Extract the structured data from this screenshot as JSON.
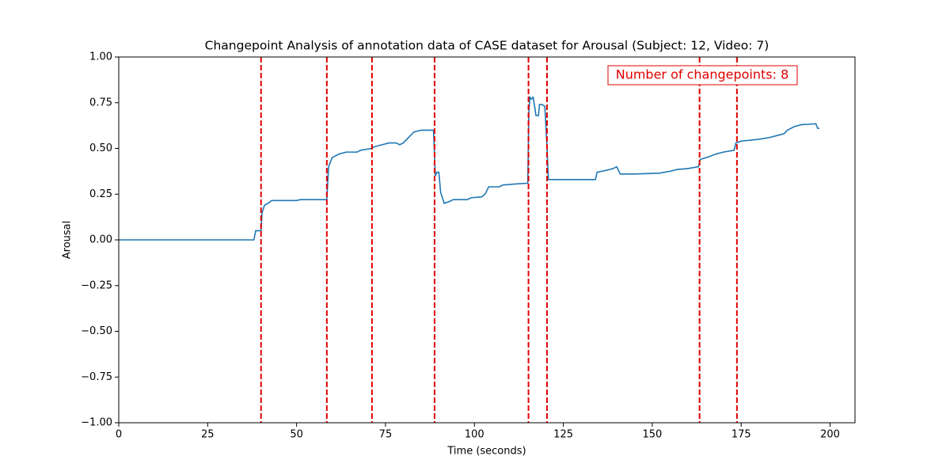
{
  "chart_data": {
    "type": "line",
    "title": "Changepoint Analysis of annotation data of CASE dataset for Arousal (Subject: 12, Video: 7)",
    "x_label": "Time (seconds)",
    "y_label": "Arousal",
    "annotation": "Number of changepoints: 8",
    "x": [
      0,
      38,
      38.5,
      40,
      40.3,
      41,
      42,
      43,
      50,
      51,
      58.5,
      59,
      60,
      61,
      62,
      64,
      67,
      68,
      71,
      72,
      74,
      76,
      78,
      79,
      80,
      81,
      83,
      85,
      88.5,
      89,
      89.5,
      90,
      90.5,
      91.5,
      93,
      94,
      98,
      99,
      102,
      103,
      104,
      107,
      108,
      111,
      115,
      115.3,
      115.6,
      116,
      116.5,
      117,
      117.3,
      118,
      118.3,
      119,
      119.8,
      120.3,
      120.8,
      134,
      134.5,
      137,
      139,
      140,
      141,
      145,
      152,
      155,
      157,
      160,
      163,
      163.5,
      166,
      168,
      170,
      173,
      173.5,
      175,
      180,
      183,
      185,
      187,
      188,
      190,
      192,
      196,
      196.5,
      197
    ],
    "series": [
      {
        "color": "#1f77b4",
        "values": [
          0,
          0,
          0.05,
          0.05,
          0.15,
          0.19,
          0.2,
          0.215,
          0.215,
          0.22,
          0.22,
          0.4,
          0.45,
          0.46,
          0.47,
          0.48,
          0.48,
          0.49,
          0.5,
          0.51,
          0.52,
          0.53,
          0.53,
          0.52,
          0.53,
          0.55,
          0.59,
          0.6,
          0.6,
          0.35,
          0.37,
          0.37,
          0.26,
          0.2,
          0.21,
          0.22,
          0.22,
          0.23,
          0.235,
          0.25,
          0.29,
          0.29,
          0.3,
          0.305,
          0.31,
          0.7,
          0.78,
          0.77,
          0.78,
          0.72,
          0.68,
          0.68,
          0.74,
          0.74,
          0.73,
          0.55,
          0.33,
          0.33,
          0.37,
          0.38,
          0.39,
          0.4,
          0.36,
          0.36,
          0.365,
          0.375,
          0.385,
          0.39,
          0.4,
          0.44,
          0.455,
          0.47,
          0.48,
          0.49,
          0.53,
          0.54,
          0.55,
          0.56,
          0.57,
          0.58,
          0.6,
          0.62,
          0.63,
          0.635,
          0.61,
          0.61
        ]
      }
    ],
    "changepoints": [
      40.0,
      58.5,
      71.2,
      88.8,
      115.2,
      120.4,
      163.3,
      173.8
    ],
    "changepoint_color": "#e00000",
    "xlim": [
      0,
      207
    ],
    "ylim": [
      -1,
      1
    ],
    "xticks": [
      0,
      25,
      50,
      75,
      100,
      125,
      150,
      175,
      200
    ],
    "yticks": [
      {
        "value": -1,
        "label": "−1.00"
      },
      {
        "value": -0.75,
        "label": "−0.75"
      },
      {
        "value": -0.5,
        "label": "−0.50"
      },
      {
        "value": -0.25,
        "label": "−0.25"
      },
      {
        "value": 0,
        "label": "0.00"
      },
      {
        "value": 0.25,
        "label": "0.25"
      },
      {
        "value": 0.5,
        "label": "0.50"
      },
      {
        "value": 0.75,
        "label": "0.75"
      },
      {
        "value": 1,
        "label": "1.00"
      }
    ]
  }
}
